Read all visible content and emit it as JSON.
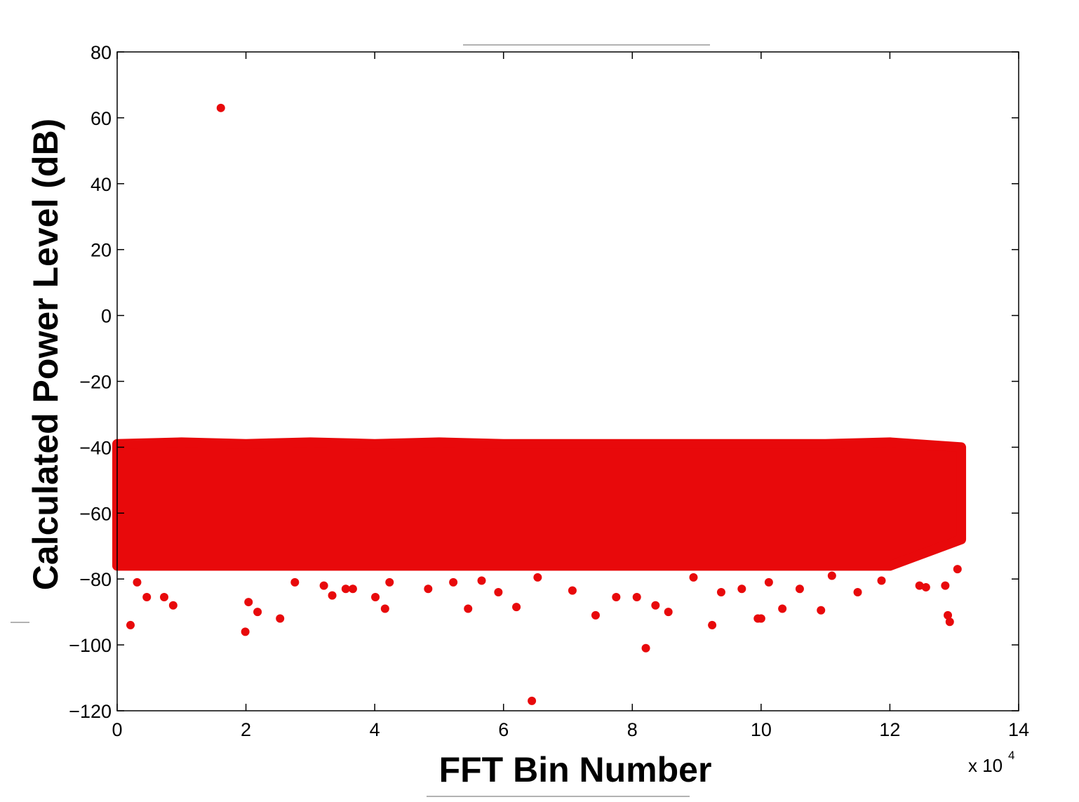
{
  "chart_data": {
    "type": "scatter",
    "xlabel": "FFT Bin Number",
    "ylabel": "Calculated Power Level (dB)",
    "x_multiplier": "x 10",
    "x_multiplier_exp": "4",
    "xlim": [
      0,
      140000
    ],
    "xticks": [
      0,
      {
        "value": 20000,
        "label": "2"
      },
      {
        "value": 40000,
        "label": "4"
      },
      {
        "value": 60000,
        "label": "6"
      },
      {
        "value": 80000,
        "label": "8"
      },
      {
        "value": 100000,
        "label": "10"
      },
      {
        "value": 120000,
        "label": "12"
      },
      {
        "value": 140000,
        "label": "14"
      }
    ],
    "ylim": [
      -120,
      80
    ],
    "yticks": [
      {
        "value": -120,
        "label": "−120"
      },
      {
        "value": -100,
        "label": "−100"
      },
      {
        "value": -80,
        "label": "−80"
      },
      {
        "value": -60,
        "label": "−60"
      },
      {
        "value": -40,
        "label": "−40"
      },
      {
        "value": -20,
        "label": "−20"
      },
      0,
      20,
      40,
      60,
      80
    ],
    "band": {
      "color": "#e8090b",
      "x": [
        0,
        10000,
        20000,
        30000,
        40000,
        50000,
        60000,
        70000,
        80000,
        90000,
        100000,
        110000,
        120000,
        131072
      ],
      "upper": [
        -39,
        -38.5,
        -39,
        -38.5,
        -39,
        -38.5,
        -39,
        -39,
        -39,
        -39,
        -39,
        -39,
        -38.5,
        -40
      ],
      "lower": [
        -76,
        -76,
        -76,
        -76,
        -76,
        -76,
        -76,
        -76,
        -76,
        -76,
        -76,
        -76,
        -76,
        -68
      ]
    },
    "series": [
      {
        "color": "#e8090b",
        "x": [
          16100,
          2070,
          19900,
          64400,
          82100,
          92400,
          129300,
          129000,
          99500,
          100000,
          109300,
          103300,
          74300,
          85600,
          83600,
          54500,
          62000,
          41600,
          40100,
          25300,
          21800,
          20400,
          8700,
          7300,
          4600,
          33400,
          3100,
          32100,
          35500,
          36600,
          48300,
          59200,
          70700,
          77500,
          80700,
          93800,
          97000,
          106000,
          115000,
          124600,
          125600,
          128600,
          130500,
          111000,
          118700,
          42300,
          52200,
          56600,
          101200,
          27600,
          65300,
          89500
        ],
        "values": [
          63,
          -94,
          -96,
          -117,
          -101,
          -94,
          -93,
          -91,
          -92,
          -92,
          -89.5,
          -89,
          -91,
          -90,
          -88,
          -89,
          -88.5,
          -89,
          -85.5,
          -92,
          -90,
          -87,
          -88,
          -85.5,
          -85.5,
          -85,
          -81,
          -82,
          -83,
          -83,
          -83,
          -84,
          -83.5,
          -85.5,
          -85.5,
          -84,
          -83,
          -83,
          -84,
          -82,
          -82.5,
          -82,
          -77,
          -79,
          -80.5,
          -81,
          -81,
          -80.5,
          -81,
          -81,
          -79.5,
          -79.5
        ]
      }
    ]
  }
}
